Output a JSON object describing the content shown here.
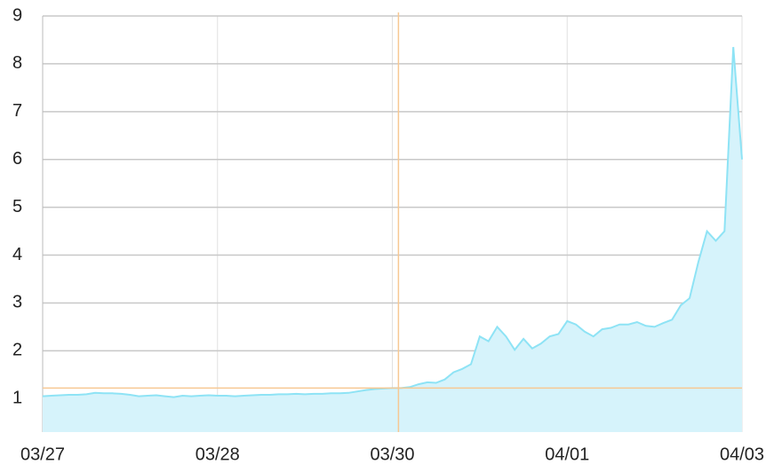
{
  "chart_data": {
    "type": "area",
    "x": [
      0,
      1,
      2,
      3,
      4,
      5,
      6,
      7,
      8,
      9,
      10,
      11,
      12,
      13,
      14,
      15,
      16,
      17,
      18,
      19,
      20,
      21,
      22,
      23,
      24,
      25,
      26,
      27,
      28,
      29,
      30,
      31,
      32,
      33,
      34,
      35,
      36,
      37,
      38,
      39,
      40,
      41,
      42,
      43,
      44,
      45,
      46,
      47,
      48,
      49,
      50,
      51,
      52,
      53,
      54,
      55,
      56,
      57,
      58,
      59,
      60,
      61,
      62,
      63,
      64,
      65,
      66,
      67,
      68,
      69,
      70,
      71,
      72,
      73,
      74,
      75,
      76,
      77,
      78,
      79,
      80
    ],
    "series": [
      {
        "color": "#8ee3f5",
        "fill": "#d6f3fb",
        "values": [
          1.05,
          1.06,
          1.07,
          1.08,
          1.08,
          1.09,
          1.12,
          1.11,
          1.11,
          1.1,
          1.08,
          1.05,
          1.06,
          1.07,
          1.05,
          1.03,
          1.06,
          1.05,
          1.06,
          1.07,
          1.06,
          1.06,
          1.05,
          1.06,
          1.07,
          1.08,
          1.08,
          1.09,
          1.09,
          1.1,
          1.09,
          1.1,
          1.1,
          1.11,
          1.11,
          1.12,
          1.15,
          1.18,
          1.2,
          1.21,
          1.22,
          1.22,
          1.24,
          1.3,
          1.34,
          1.33,
          1.4,
          1.55,
          1.62,
          1.72,
          2.3,
          2.2,
          2.5,
          2.3,
          2.02,
          2.25,
          2.05,
          2.15,
          2.3,
          2.35,
          2.62,
          2.55,
          2.4,
          2.3,
          2.45,
          2.48,
          2.55,
          2.55,
          2.6,
          2.52,
          2.5,
          2.58,
          2.65,
          2.95,
          3.1,
          3.85,
          4.5,
          4.3,
          4.5,
          8.35,
          6.0
        ]
      }
    ],
    "xlim": [
      0,
      80
    ],
    "xticks": [
      {
        "value": 0,
        "label": "03/27"
      },
      {
        "value": 20,
        "label": "03/28"
      },
      {
        "value": 40,
        "label": "03/30"
      },
      {
        "value": 60,
        "label": "04/01"
      },
      {
        "value": 80,
        "label": "04/03"
      }
    ],
    "ylim": [
      0.3,
      9
    ],
    "yticks": [
      1,
      2,
      3,
      4,
      5,
      6,
      7,
      8,
      9
    ],
    "grid": true,
    "crosshair": {
      "x": 40.7,
      "y": 1.22,
      "color": "#f7c893"
    }
  }
}
